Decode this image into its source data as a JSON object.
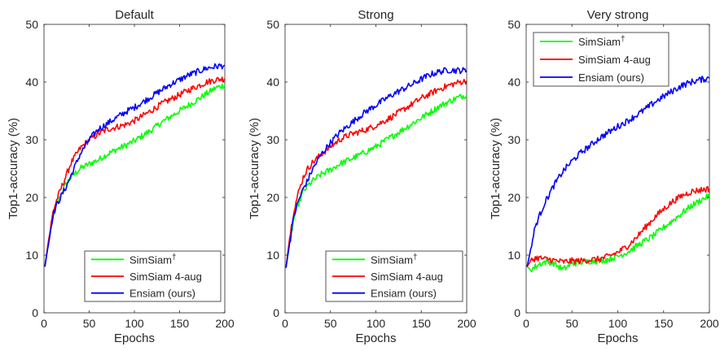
{
  "colors": {
    "simsiam": "#00ff00",
    "simsiam_4aug": "#ff0000",
    "ensiam": "#0000ff",
    "axis": "#262626"
  },
  "chart_data": [
    {
      "type": "line",
      "title": "Default",
      "xlabel": "Epochs",
      "ylabel": "Top1-accuracy (%)",
      "xlim": [
        0,
        200
      ],
      "ylim": [
        0,
        50
      ],
      "xticks": [
        0,
        50,
        100,
        150,
        200
      ],
      "yticks": [
        0,
        10,
        20,
        30,
        40,
        50
      ],
      "grid": false,
      "legend_position": "bottom-right",
      "x": [
        1,
        5,
        10,
        15,
        20,
        25,
        30,
        40,
        50,
        60,
        70,
        80,
        90,
        100,
        110,
        120,
        130,
        140,
        150,
        160,
        170,
        180,
        190,
        200
      ],
      "series": [
        {
          "name": "SimSiam",
          "name_sup": "†",
          "color_key": "simsiam",
          "values": [
            8,
            12,
            17,
            19,
            21,
            22.5,
            23.5,
            25,
            25.8,
            26.5,
            27.5,
            28.3,
            29,
            29.8,
            30.8,
            31.8,
            33,
            34,
            35,
            36,
            37,
            38,
            39,
            39.5
          ]
        },
        {
          "name": "SimSiam 4-aug",
          "color_key": "simsiam_4aug",
          "values": [
            8,
            12.5,
            17.5,
            20,
            22,
            24,
            26,
            28.5,
            30,
            31,
            31.8,
            32.2,
            32.6,
            33.3,
            34.2,
            35.2,
            36.2,
            37,
            37.8,
            38.6,
            39.3,
            40,
            40.4,
            40.6
          ]
        },
        {
          "name": "Ensiam (ours)",
          "color_key": "ensiam",
          "values": [
            8,
            12,
            17,
            19,
            20.5,
            22,
            23.8,
            27.5,
            30,
            31.8,
            32.8,
            33.8,
            34.8,
            35.6,
            36.6,
            37.6,
            38.6,
            39.6,
            40.4,
            41.2,
            41.8,
            42.4,
            42.7,
            42.9
          ]
        }
      ]
    },
    {
      "type": "line",
      "title": "Strong",
      "xlabel": "Epochs",
      "ylabel": "Top1-accuracy (%)",
      "xlim": [
        0,
        200
      ],
      "ylim": [
        0,
        50
      ],
      "xticks": [
        0,
        50,
        100,
        150,
        200
      ],
      "yticks": [
        0,
        10,
        20,
        30,
        40,
        50
      ],
      "grid": false,
      "legend_position": "bottom-right",
      "x": [
        1,
        5,
        10,
        15,
        20,
        25,
        30,
        40,
        50,
        60,
        70,
        80,
        90,
        100,
        110,
        120,
        130,
        140,
        150,
        160,
        170,
        180,
        190,
        200
      ],
      "series": [
        {
          "name": "SimSiam",
          "name_sup": "†",
          "color_key": "simsiam",
          "values": [
            7.8,
            12,
            16.5,
            19,
            21,
            22,
            22.8,
            24,
            24.8,
            25.8,
            26.5,
            27.2,
            28,
            28.8,
            29.8,
            30.8,
            31.8,
            32.8,
            33.8,
            34.8,
            35.8,
            36.6,
            37.3,
            37.8
          ]
        },
        {
          "name": "SimSiam 4-aug",
          "color_key": "simsiam_4aug",
          "values": [
            7.8,
            13,
            18,
            21,
            23.5,
            25,
            26,
            27.5,
            28.8,
            30,
            30.8,
            31.3,
            31.8,
            32.5,
            33.3,
            34.2,
            35.2,
            36.2,
            37.2,
            38,
            38.8,
            39.4,
            39.9,
            40.2
          ]
        },
        {
          "name": "Ensiam (ours)",
          "color_key": "ensiam",
          "values": [
            7.8,
            12,
            17,
            19.5,
            21.5,
            23,
            24.8,
            27.5,
            29.5,
            31.2,
            32.5,
            33.8,
            35,
            36,
            37,
            38,
            38.8,
            39.6,
            40.5,
            41.3,
            41.8,
            42.1,
            42,
            42
          ]
        }
      ]
    },
    {
      "type": "line",
      "title": "Very strong",
      "xlabel": "Epochs",
      "ylabel": "Top1-accuracy (%)",
      "xlim": [
        0,
        200
      ],
      "ylim": [
        0,
        50
      ],
      "xticks": [
        0,
        50,
        100,
        150,
        200
      ],
      "yticks": [
        0,
        10,
        20,
        30,
        40,
        50
      ],
      "grid": false,
      "legend_position": "top-left",
      "x": [
        1,
        5,
        10,
        15,
        20,
        25,
        30,
        40,
        50,
        60,
        70,
        80,
        90,
        100,
        110,
        120,
        130,
        140,
        150,
        160,
        170,
        180,
        190,
        200
      ],
      "series": [
        {
          "name": "SimSiam",
          "name_sup": "†",
          "color_key": "simsiam",
          "values": [
            8,
            7.5,
            8,
            8.5,
            8.8,
            8.8,
            8.6,
            7.5,
            8.5,
            8.8,
            9,
            9,
            9.3,
            9.8,
            10.5,
            11.5,
            12.5,
            13.5,
            14.8,
            16,
            17.3,
            18.5,
            19.5,
            20.3
          ]
        },
        {
          "name": "SimSiam 4-aug",
          "color_key": "simsiam_4aug",
          "values": [
            8,
            9,
            9.5,
            9.5,
            9.3,
            9.3,
            9.1,
            8.8,
            9,
            9,
            9.2,
            9.3,
            9.8,
            10.5,
            11.5,
            13,
            14.8,
            16.5,
            18,
            19.3,
            20.3,
            21,
            21.3,
            21.5
          ]
        },
        {
          "name": "Ensiam (ours)",
          "color_key": "ensiam",
          "values": [
            8,
            11,
            15,
            17,
            19,
            20.5,
            22,
            24.5,
            26.3,
            27.8,
            29,
            30.3,
            31.3,
            32.3,
            33.2,
            34.2,
            35.3,
            36.5,
            37.5,
            38.5,
            39.4,
            40,
            40.4,
            40.7
          ]
        }
      ]
    }
  ]
}
